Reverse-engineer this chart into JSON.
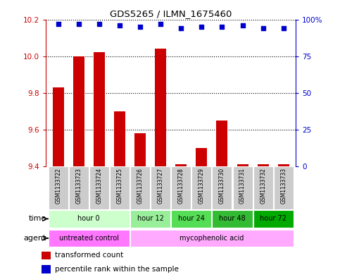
{
  "title": "GDS5265 / ILMN_1675460",
  "samples": [
    "GSM1133722",
    "GSM1133723",
    "GSM1133724",
    "GSM1133725",
    "GSM1133726",
    "GSM1133727",
    "GSM1133728",
    "GSM1133729",
    "GSM1133730",
    "GSM1133731",
    "GSM1133732",
    "GSM1133733"
  ],
  "red_values": [
    9.83,
    10.0,
    10.02,
    9.7,
    9.58,
    10.04,
    9.41,
    9.5,
    9.65,
    9.41,
    9.41,
    9.41
  ],
  "blue_pct": [
    97,
    97,
    97,
    96,
    95,
    97,
    94,
    95,
    95,
    96,
    94,
    94
  ],
  "ylim_left": [
    9.4,
    10.2
  ],
  "ylim_right": [
    0,
    100
  ],
  "yticks_left": [
    9.4,
    9.6,
    9.8,
    10.0,
    10.2
  ],
  "yticks_right": [
    0,
    25,
    50,
    75,
    100
  ],
  "ytick_labels_right": [
    "0",
    "25",
    "50",
    "75",
    "100%"
  ],
  "time_groups": [
    {
      "label": "hour 0",
      "start": 0,
      "end": 3,
      "color": "#ccffcc"
    },
    {
      "label": "hour 12",
      "start": 4,
      "end": 5,
      "color": "#99ee99"
    },
    {
      "label": "hour 24",
      "start": 6,
      "end": 7,
      "color": "#55dd55"
    },
    {
      "label": "hour 48",
      "start": 8,
      "end": 9,
      "color": "#33bb33"
    },
    {
      "label": "hour 72",
      "start": 10,
      "end": 11,
      "color": "#00aa00"
    }
  ],
  "agent_groups": [
    {
      "label": "untreated control",
      "start": 0,
      "end": 3,
      "color": "#ff77ff"
    },
    {
      "label": "mycophenolic acid",
      "start": 4,
      "end": 11,
      "color": "#ffaaff"
    }
  ],
  "bar_color": "#cc0000",
  "dot_color": "#0000cc",
  "left_tick_color": "#cc0000",
  "right_tick_color": "#0000cc",
  "bar_width": 0.55,
  "sample_box_color": "#cccccc",
  "legend_red_label": "transformed count",
  "legend_blue_label": "percentile rank within the sample"
}
